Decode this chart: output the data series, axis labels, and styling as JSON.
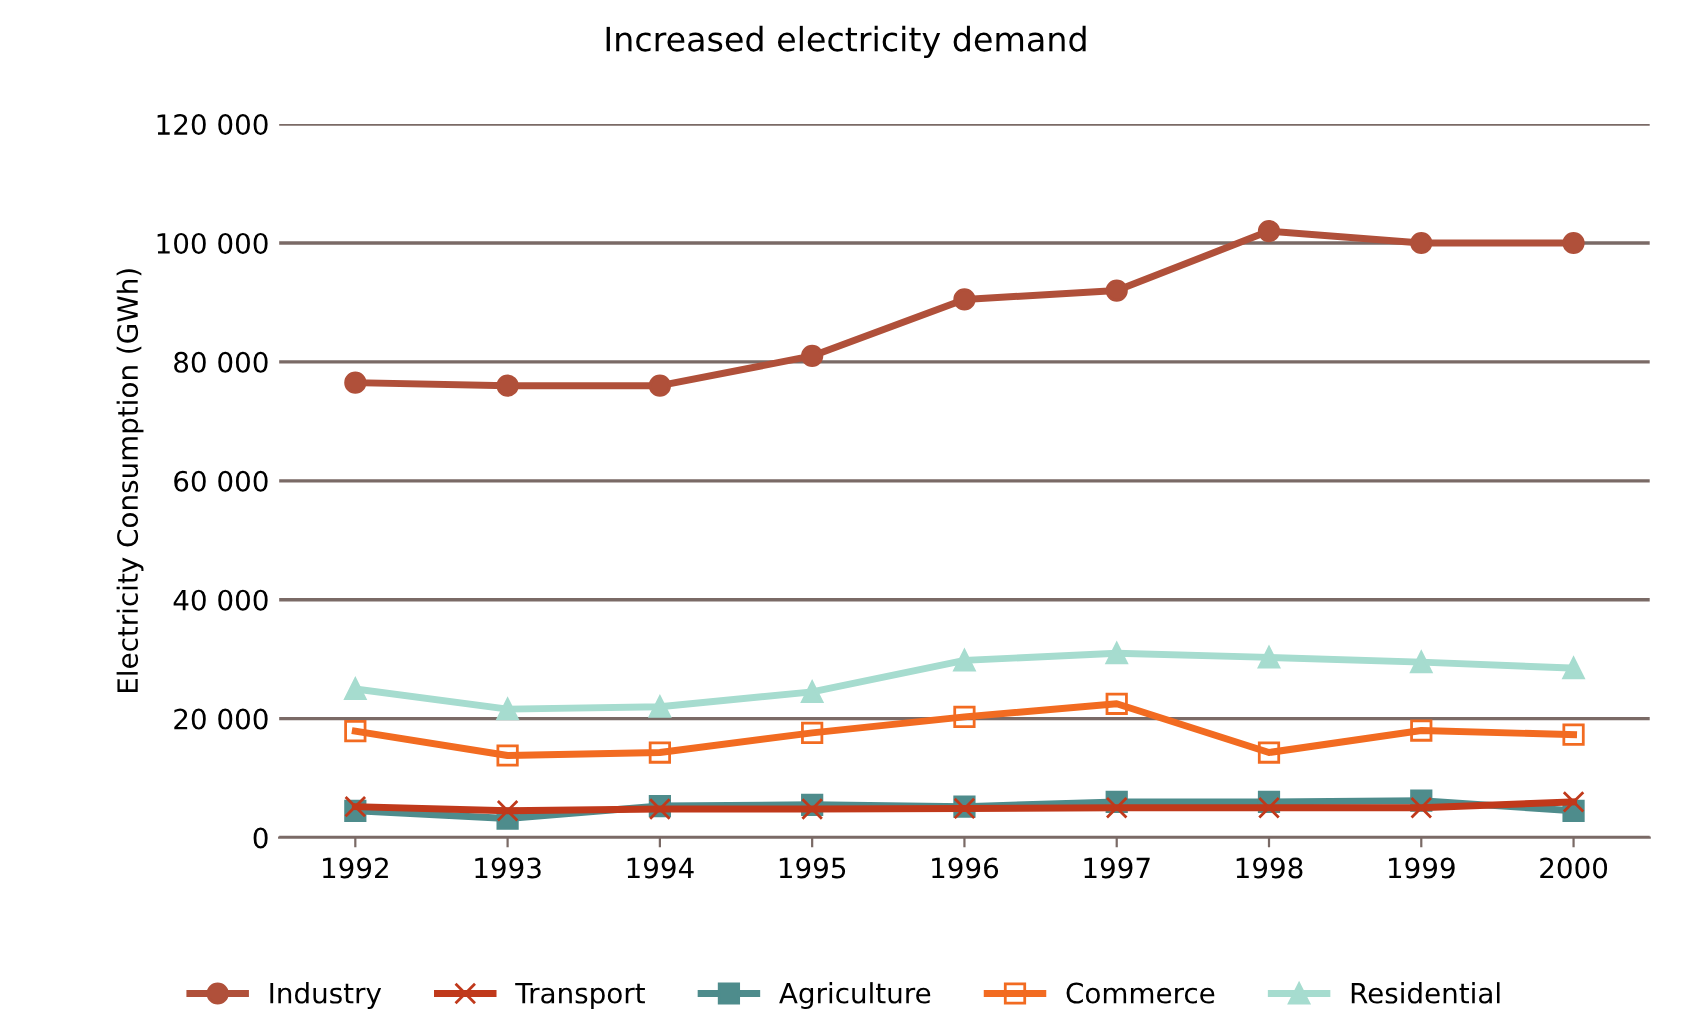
{
  "chart_data": {
    "type": "line",
    "title": "Increased electricity demand",
    "ylabel": "Electricity Consumption (GWh)",
    "categories": [
      "1992",
      "1993",
      "1994",
      "1995",
      "1996",
      "1997",
      "1998",
      "1999",
      "2000"
    ],
    "series": [
      {
        "name": "Industry",
        "color": "#b0503a",
        "marker": "circle",
        "values": [
          76500,
          76000,
          76000,
          81000,
          90500,
          92000,
          102000,
          100000,
          100000
        ]
      },
      {
        "name": "Transport",
        "color": "#c0391b",
        "marker": "cross",
        "values": [
          5200,
          4500,
          4800,
          4800,
          4900,
          5000,
          5000,
          5000,
          6000
        ]
      },
      {
        "name": "Agriculture",
        "color": "#4e8c8c",
        "marker": "square",
        "values": [
          4500,
          3200,
          5300,
          5500,
          5200,
          6000,
          6000,
          6200,
          4500
        ]
      },
      {
        "name": "Commerce",
        "color": "#f26b21",
        "marker": "square",
        "values": [
          17900,
          13800,
          14300,
          17600,
          20300,
          22500,
          14300,
          18000,
          17300
        ]
      },
      {
        "name": "Residential",
        "color": "#a6dccf",
        "marker": "triangle",
        "values": [
          25000,
          21600,
          22000,
          24500,
          29800,
          31000,
          30300,
          29500,
          28500
        ]
      }
    ],
    "ylim": [
      0,
      120000
    ],
    "yticks": [
      {
        "value": 0,
        "label": "0"
      },
      {
        "value": 20000,
        "label": "20 000"
      },
      {
        "value": 40000,
        "label": "40 000"
      },
      {
        "value": 60000,
        "label": "60 000"
      },
      {
        "value": 80000,
        "label": "80 000"
      },
      {
        "value": 100000,
        "label": "100 000"
      },
      {
        "value": 120000,
        "label": "120 000"
      }
    ],
    "grid": "y",
    "legend": "bottom"
  }
}
